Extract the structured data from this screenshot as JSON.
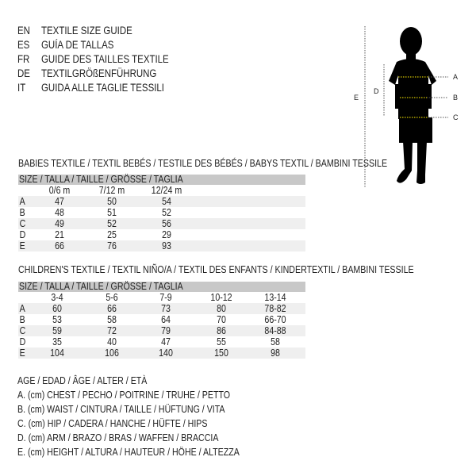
{
  "languages": [
    {
      "code": "EN",
      "text": "TEXTILE SIZE GUIDE"
    },
    {
      "code": "ES",
      "text": "GUÍA DE TALLAS"
    },
    {
      "code": "FR",
      "text": "GUIDE DES TAILLES TEXTILE"
    },
    {
      "code": "DE",
      "text": "TEXTILGRÖßENFÜHRUNG"
    },
    {
      "code": "IT",
      "text": "GUIDA ALLE TAGLIE TESSILI"
    }
  ],
  "figure": {
    "labels": [
      "A",
      "B",
      "C",
      "D",
      "E"
    ],
    "accent": "#d4c200"
  },
  "babies": {
    "title": "BABIES TEXTILE / TEXTIL BEBÉS / TESTILE DES BÉBÉS / BABYS TEXTIL / BAMBINI TESSILE",
    "header": "SIZE / TALLA / TAILLE / GRÖSSE / TAGLIA",
    "columns": [
      "0/6 m",
      "7/12 m",
      "12/24 m"
    ],
    "rows": [
      {
        "label": "A",
        "values": [
          "47",
          "50",
          "54"
        ]
      },
      {
        "label": "B",
        "values": [
          "48",
          "51",
          "52"
        ]
      },
      {
        "label": "C",
        "values": [
          "49",
          "52",
          "56"
        ]
      },
      {
        "label": "D",
        "values": [
          "21",
          "25",
          "29"
        ]
      },
      {
        "label": "E",
        "values": [
          "66",
          "76",
          "93"
        ]
      }
    ]
  },
  "children": {
    "title": "CHILDREN'S TEXTILE / TEXTIL NIÑO/A / TEXTIL DES ENFANTS / KINDERTEXTIL / BAMBINI TESSILE",
    "header": "SIZE / TALLA / TAILLE / GRÖSSE / TAGLIA",
    "columns": [
      "3-4",
      "5-6",
      "7-9",
      "10-12",
      "13-14"
    ],
    "rows": [
      {
        "label": "A",
        "values": [
          "60",
          "66",
          "73",
          "80",
          "78-82"
        ]
      },
      {
        "label": "B",
        "values": [
          "53",
          "58",
          "64",
          "70",
          "66-70"
        ]
      },
      {
        "label": "C",
        "values": [
          "59",
          "72",
          "79",
          "86",
          "84-88"
        ]
      },
      {
        "label": "D",
        "values": [
          "35",
          "40",
          "47",
          "55",
          "58"
        ]
      },
      {
        "label": "E",
        "values": [
          "104",
          "106",
          "140",
          "150",
          "98"
        ]
      }
    ]
  },
  "legend": [
    "AGE / EDAD / ÂGE / ALTER / ETÀ",
    "A. (cm) CHEST / PECHO / POITRINE / TRUHE / PETTO",
    "B. (cm) WAIST / CINTURA / TAILLE / HÜFTUNG / VITA",
    "C. (cm) HIP / CADERA / HANCHE / HÜFTE / HIPS",
    "D. (cm) ARM / BRAZO / BRAS / WAFFEN / BRACCIA",
    "E. (cm) HEIGHT / ALTURA / HAUTEUR / HÖHE / ALTEZZA"
  ]
}
